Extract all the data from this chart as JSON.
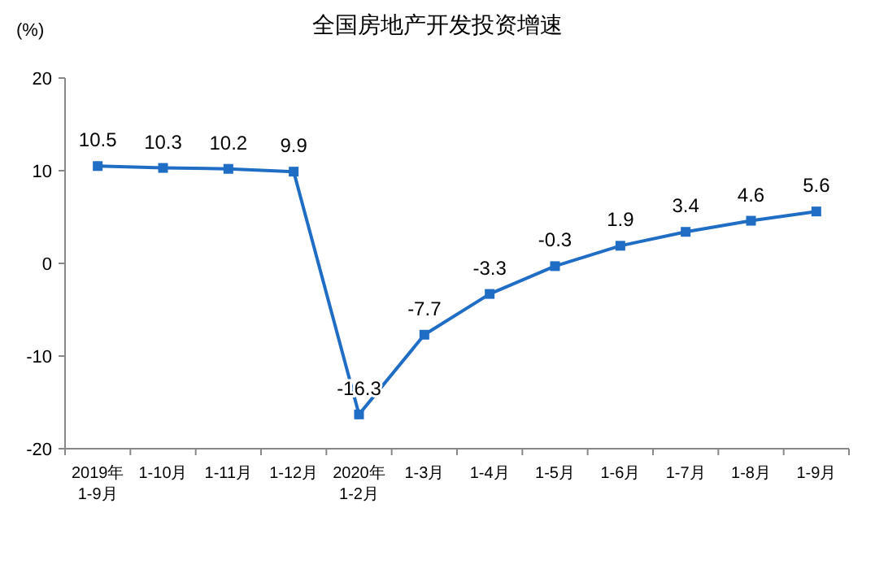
{
  "chart_data": {
    "type": "line",
    "title": "全国房地产开发投资增速",
    "ylabel": "(%)",
    "categories": [
      "2019年\n1-9月",
      "1-10月",
      "1-11月",
      "1-12月",
      "2020年\n1-2月",
      "1-3月",
      "1-4月",
      "1-5月",
      "1-6月",
      "1-7月",
      "1-8月",
      "1-9月"
    ],
    "series": [
      {
        "color": "#1f6dc4",
        "values": [
          10.5,
          10.3,
          10.2,
          9.9,
          -16.3,
          -7.7,
          -3.3,
          -0.3,
          1.9,
          3.4,
          4.6,
          5.6
        ]
      }
    ],
    "ylim": [
      -20,
      20
    ],
    "yticks": [
      -20,
      -10,
      0,
      10,
      20
    ],
    "marker": "square",
    "data_labels": true,
    "grid": false
  }
}
